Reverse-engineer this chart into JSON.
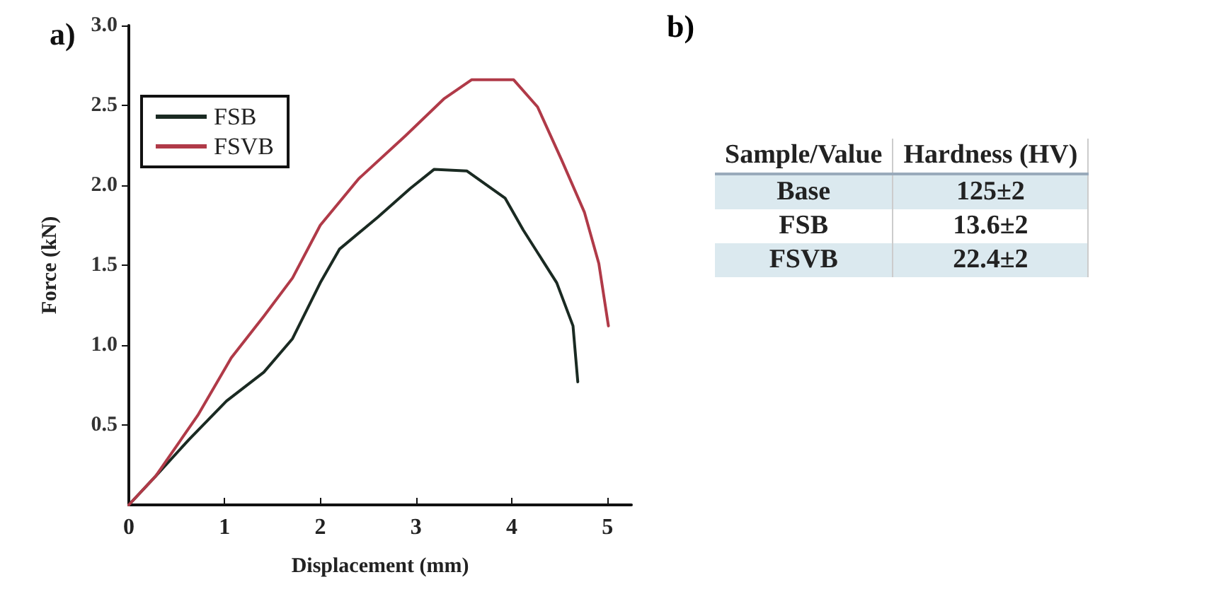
{
  "chart_data": [
    {
      "type": "line",
      "title": "a)",
      "xlabel": "Displacement (mm)",
      "ylabel": "Force (kN)",
      "xlim": [
        0,
        5.25
      ],
      "xticks": [
        0,
        1,
        2,
        3,
        4,
        5
      ],
      "ylim": [
        0,
        3
      ],
      "yticks": [
        {
          "value": 0.5,
          "label": "0.5"
        },
        {
          "value": 1,
          "label": "1.0"
        },
        {
          "value": 1.5,
          "label": "1.5"
        },
        {
          "value": 2,
          "label": "2.0"
        },
        {
          "value": 2.5,
          "label": "2.5"
        },
        {
          "value": 3,
          "label": "3.0"
        }
      ],
      "legend": "top left",
      "grid": false,
      "marker": "none",
      "line_style": "solid",
      "series": [
        {
          "name": "FSB",
          "color": "#1a2a22",
          "x": [
            0,
            0.28,
            0.63,
            1.02,
            1.41,
            1.71,
            2.0,
            2.2,
            2.6,
            2.94,
            3.19,
            3.53,
            3.93,
            4.12,
            4.47,
            4.64,
            4.69
          ],
          "values": [
            0,
            0.18,
            0.41,
            0.65,
            0.83,
            1.04,
            1.39,
            1.6,
            1.8,
            1.98,
            2.1,
            2.09,
            1.92,
            1.72,
            1.39,
            1.12,
            0.77
          ]
        },
        {
          "name": "FSVB",
          "color": "#b03a48",
          "x": [
            0,
            0.28,
            0.72,
            1.07,
            1.41,
            1.71,
            2.0,
            2.4,
            2.89,
            3.29,
            3.58,
            4.02,
            4.27,
            4.52,
            4.76,
            4.91,
            5.01
          ],
          "values": [
            0,
            0.18,
            0.56,
            0.92,
            1.18,
            1.42,
            1.75,
            2.04,
            2.31,
            2.54,
            2.66,
            2.66,
            2.49,
            2.16,
            1.83,
            1.51,
            1.12
          ]
        }
      ]
    },
    {
      "type": "other",
      "title": "b)",
      "annotations": [
        "Sample/Value",
        "Hardness (HV)",
        "Base",
        "125±2",
        "FSB",
        "13.6±2",
        "FSVB",
        "22.4±2"
      ]
    }
  ]
}
